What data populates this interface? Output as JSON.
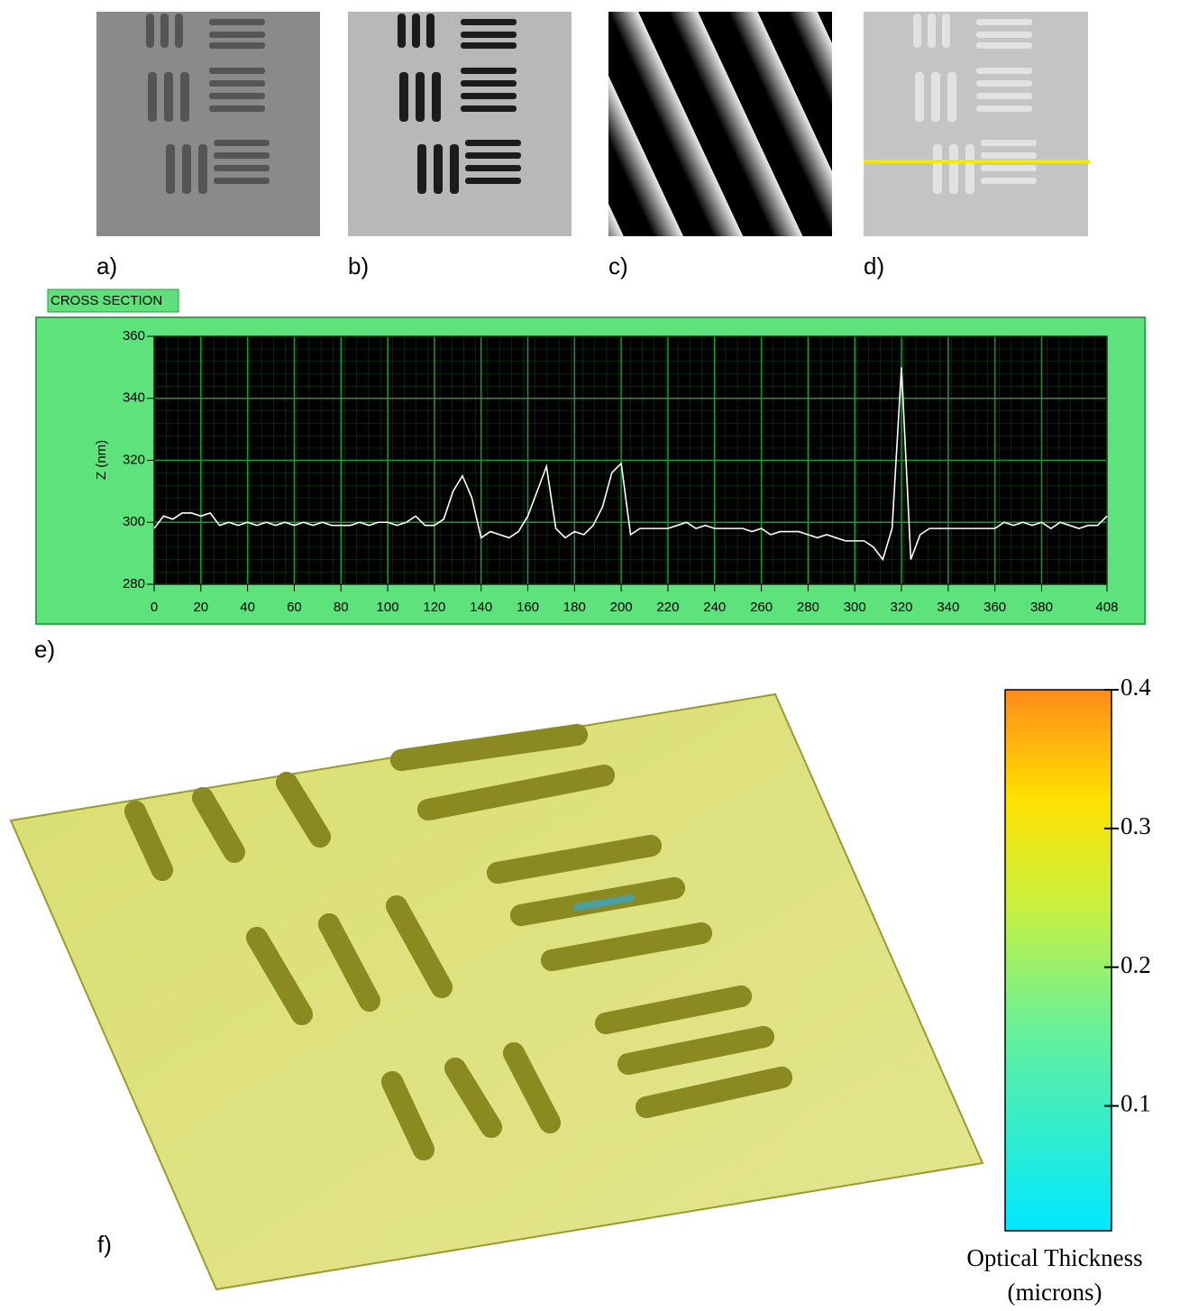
{
  "panel_labels": [
    "a)",
    "b)",
    "c)",
    "d)",
    "e)",
    "f)"
  ],
  "chart_data": {
    "type": "line",
    "title": "CROSS SECTION",
    "ylabel": "Z (nm)",
    "color": "#ffffff",
    "grid": true,
    "x": [
      0,
      4,
      8,
      12,
      16,
      20,
      24,
      28,
      32,
      36,
      40,
      44,
      48,
      52,
      56,
      60,
      64,
      68,
      72,
      76,
      80,
      84,
      88,
      92,
      96,
      100,
      104,
      108,
      112,
      116,
      120,
      124,
      128,
      132,
      136,
      140,
      144,
      148,
      152,
      156,
      160,
      164,
      168,
      172,
      176,
      180,
      184,
      188,
      192,
      196,
      200,
      204,
      208,
      212,
      216,
      220,
      224,
      228,
      232,
      236,
      240,
      244,
      248,
      252,
      256,
      260,
      264,
      268,
      272,
      276,
      280,
      284,
      288,
      292,
      296,
      300,
      304,
      308,
      312,
      316,
      320,
      324,
      328,
      332,
      336,
      340,
      344,
      348,
      352,
      356,
      360,
      364,
      368,
      372,
      376,
      380,
      384,
      388,
      392,
      396,
      400,
      404,
      408
    ],
    "values": [
      298,
      302,
      301,
      303,
      303,
      302,
      303,
      299,
      300,
      299,
      300,
      299,
      300,
      299,
      300,
      299,
      300,
      299,
      300,
      299,
      299,
      299,
      300,
      299,
      300,
      300,
      299,
      300,
      302,
      299,
      299,
      301,
      310,
      315,
      308,
      295,
      297,
      296,
      295,
      297,
      302,
      310,
      318,
      298,
      295,
      297,
      296,
      299,
      305,
      316,
      319,
      296,
      298,
      298,
      298,
      298,
      299,
      300,
      298,
      299,
      298,
      298,
      298,
      298,
      297,
      298,
      296,
      297,
      297,
      297,
      296,
      295,
      296,
      295,
      294,
      294,
      294,
      292,
      288,
      298,
      350,
      288,
      296,
      298,
      298,
      298,
      298,
      298,
      298,
      298,
      298,
      300,
      299,
      300,
      299,
      300,
      298,
      300,
      299,
      298,
      299,
      299,
      302
    ],
    "xlim": [
      0,
      408
    ],
    "xticks": [
      0,
      20,
      40,
      60,
      80,
      100,
      120,
      140,
      160,
      180,
      200,
      220,
      240,
      260,
      280,
      300,
      320,
      340,
      360,
      380,
      408
    ],
    "ylim": [
      280,
      360
    ],
    "yticks": [
      280,
      300,
      320,
      340,
      360
    ]
  },
  "colorbar": {
    "title": [
      "Optical Thickness",
      "(microns)"
    ],
    "lim": [
      0.01,
      0.4
    ],
    "ticks": [
      0.1,
      0.2,
      0.3,
      0.4
    ]
  }
}
